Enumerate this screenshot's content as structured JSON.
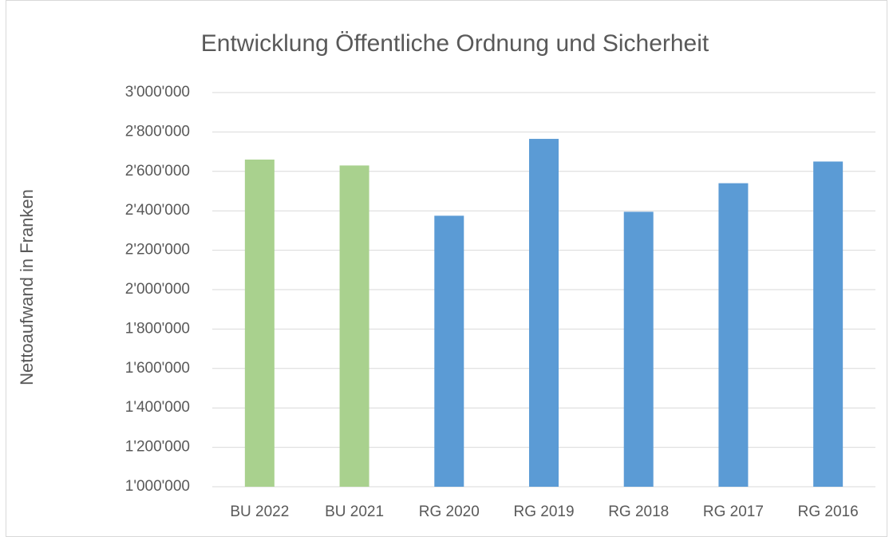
{
  "chart_data": {
    "type": "bar",
    "title": "Entwicklung Öffentliche Ordnung und Sicherheit",
    "y_label": "Nettoaufwand in Franken",
    "categories": [
      "BU 2022",
      "BU 2021",
      "RG 2020",
      "RG 2019",
      "RG 2018",
      "RG 2017",
      "RG 2016"
    ],
    "values": [
      2660000,
      2630000,
      2375000,
      2765000,
      2395000,
      2540000,
      2650000
    ],
    "colors": [
      "#a9d18e",
      "#a9d18e",
      "#5b9bd5",
      "#5b9bd5",
      "#5b9bd5",
      "#5b9bd5",
      "#5b9bd5"
    ],
    "ylim": [
      1000000,
      3000000
    ],
    "yticks": [
      {
        "value": 1000000,
        "label": "1'000'000"
      },
      {
        "value": 1200000,
        "label": "1'200'000"
      },
      {
        "value": 1400000,
        "label": "1'400'000"
      },
      {
        "value": 1600000,
        "label": "1'600'000"
      },
      {
        "value": 1800000,
        "label": "1'800'000"
      },
      {
        "value": 2000000,
        "label": "2'000'000"
      },
      {
        "value": 2200000,
        "label": "2'200'000"
      },
      {
        "value": 2400000,
        "label": "2'400'000"
      },
      {
        "value": 2600000,
        "label": "2'600'000"
      },
      {
        "value": 2800000,
        "label": "2'800'000"
      },
      {
        "value": 3000000,
        "label": "3'000'000"
      }
    ],
    "grid": true
  }
}
